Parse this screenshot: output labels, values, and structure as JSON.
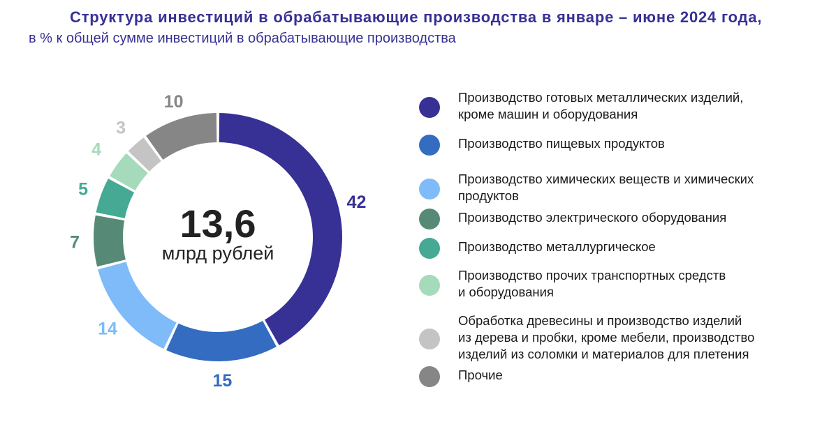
{
  "title": "Структура инвестиций в обрабатывающие производства в январе – июне 2024 года,",
  "subtitle": "в % к общей сумме инвестиций в обрабатывающие производства",
  "chart_data": {
    "type": "pie",
    "donut": true,
    "center_value": "13,6",
    "center_unit": "млрд рублей",
    "categories": [
      "Производство готовых металлических изделий, кроме машин и оборудования",
      "Производство пищевых продуктов",
      "Производство химических веществ и химических продуктов",
      "Производство электрического оборудования",
      "Производство металлургическое",
      "Производство прочих транспортных средств и оборудования",
      "Обработка древесины и производство изделий из дерева и пробки, кроме мебели, производство изделий из соломки и материалов для плетения",
      "Прочие"
    ],
    "values": [
      42,
      15,
      14,
      7,
      5,
      4,
      3,
      10
    ],
    "value_labels": [
      "42",
      "15",
      "14",
      "7",
      "5",
      "4",
      "3",
      "10"
    ],
    "colors": [
      "#373195",
      "#336CC0",
      "#7EBBF8",
      "#568A76",
      "#45A993",
      "#A5DBBA",
      "#C4C4C4",
      "#868686"
    ],
    "legend_position": "right"
  },
  "legend": [
    {
      "lines": [
        "Производство готовых металлических изделий,",
        "кроме машин и оборудования"
      ]
    },
    {
      "lines": [
        "Производство пищевых продуктов"
      ]
    },
    {
      "lines": [
        "Производство химических веществ и химических",
        "продуктов"
      ]
    },
    {
      "lines": [
        "Производство электрического оборудования"
      ]
    },
    {
      "lines": [
        "Производство металлургическое"
      ]
    },
    {
      "lines": [
        "Производство прочих транспортных средств",
        "и оборудования"
      ]
    },
    {
      "lines": [
        "Обработка древесины и производство изделий",
        "из дерева и пробки, кроме мебели, производство",
        "изделий из соломки и материалов для плетения"
      ]
    },
    {
      "lines": [
        "Прочие"
      ]
    }
  ]
}
